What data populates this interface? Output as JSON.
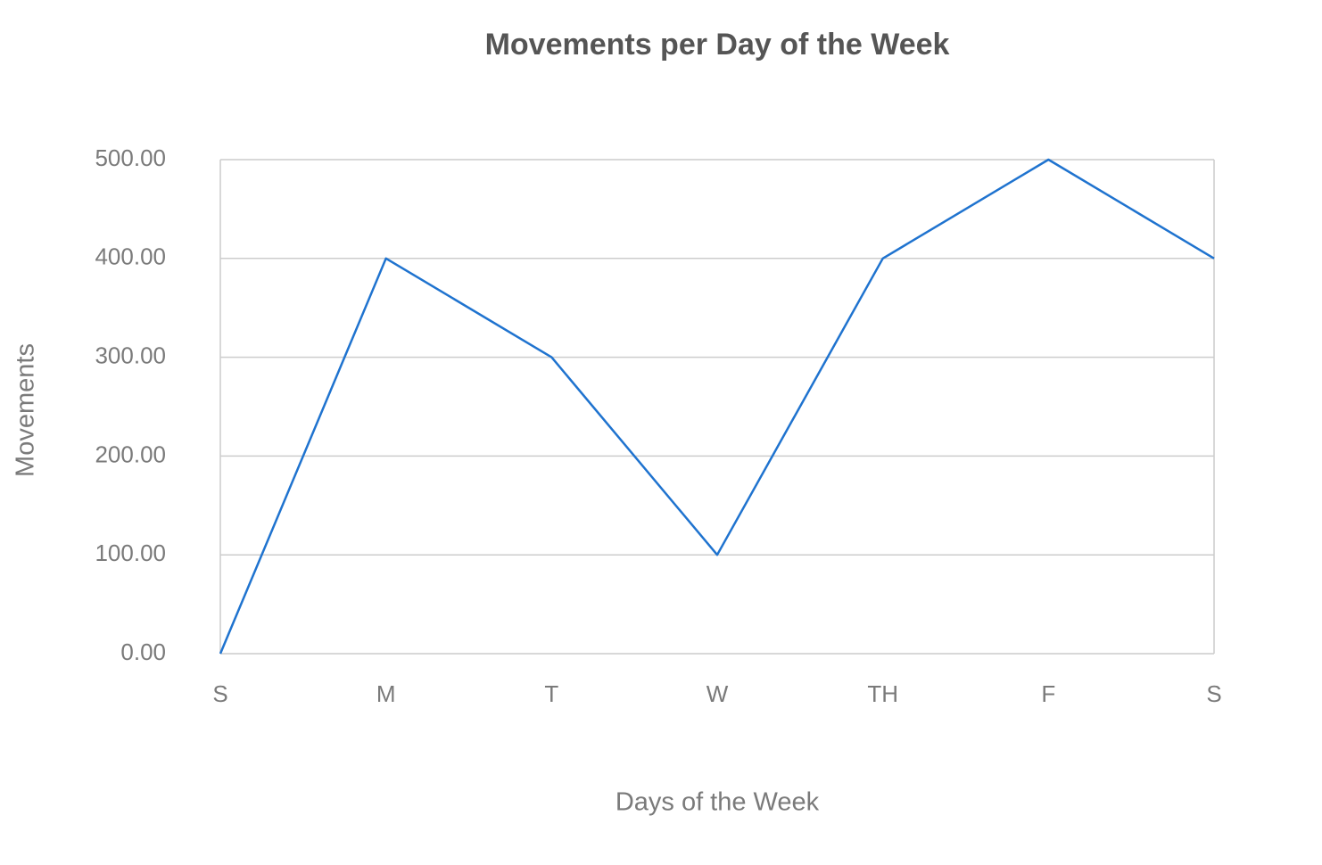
{
  "chart_data": {
    "type": "line",
    "title": "Movements per Day of the Week",
    "x_label": "Days of the Week",
    "y_label": "Movements",
    "categories": [
      "S",
      "M",
      "T",
      "W",
      "TH",
      "F",
      "S"
    ],
    "values": [
      0,
      400,
      300,
      100,
      400,
      500,
      400
    ],
    "color": "#1f73cf",
    "ylim": [
      0,
      500
    ],
    "yticks": [
      {
        "value": 0,
        "label": "0.00"
      },
      {
        "value": 100,
        "label": "100.00"
      },
      {
        "value": 200,
        "label": "200.00"
      },
      {
        "value": 300,
        "label": "300.00"
      },
      {
        "value": 400,
        "label": "400.00"
      },
      {
        "value": 500,
        "label": "500.00"
      }
    ],
    "grid": true
  }
}
